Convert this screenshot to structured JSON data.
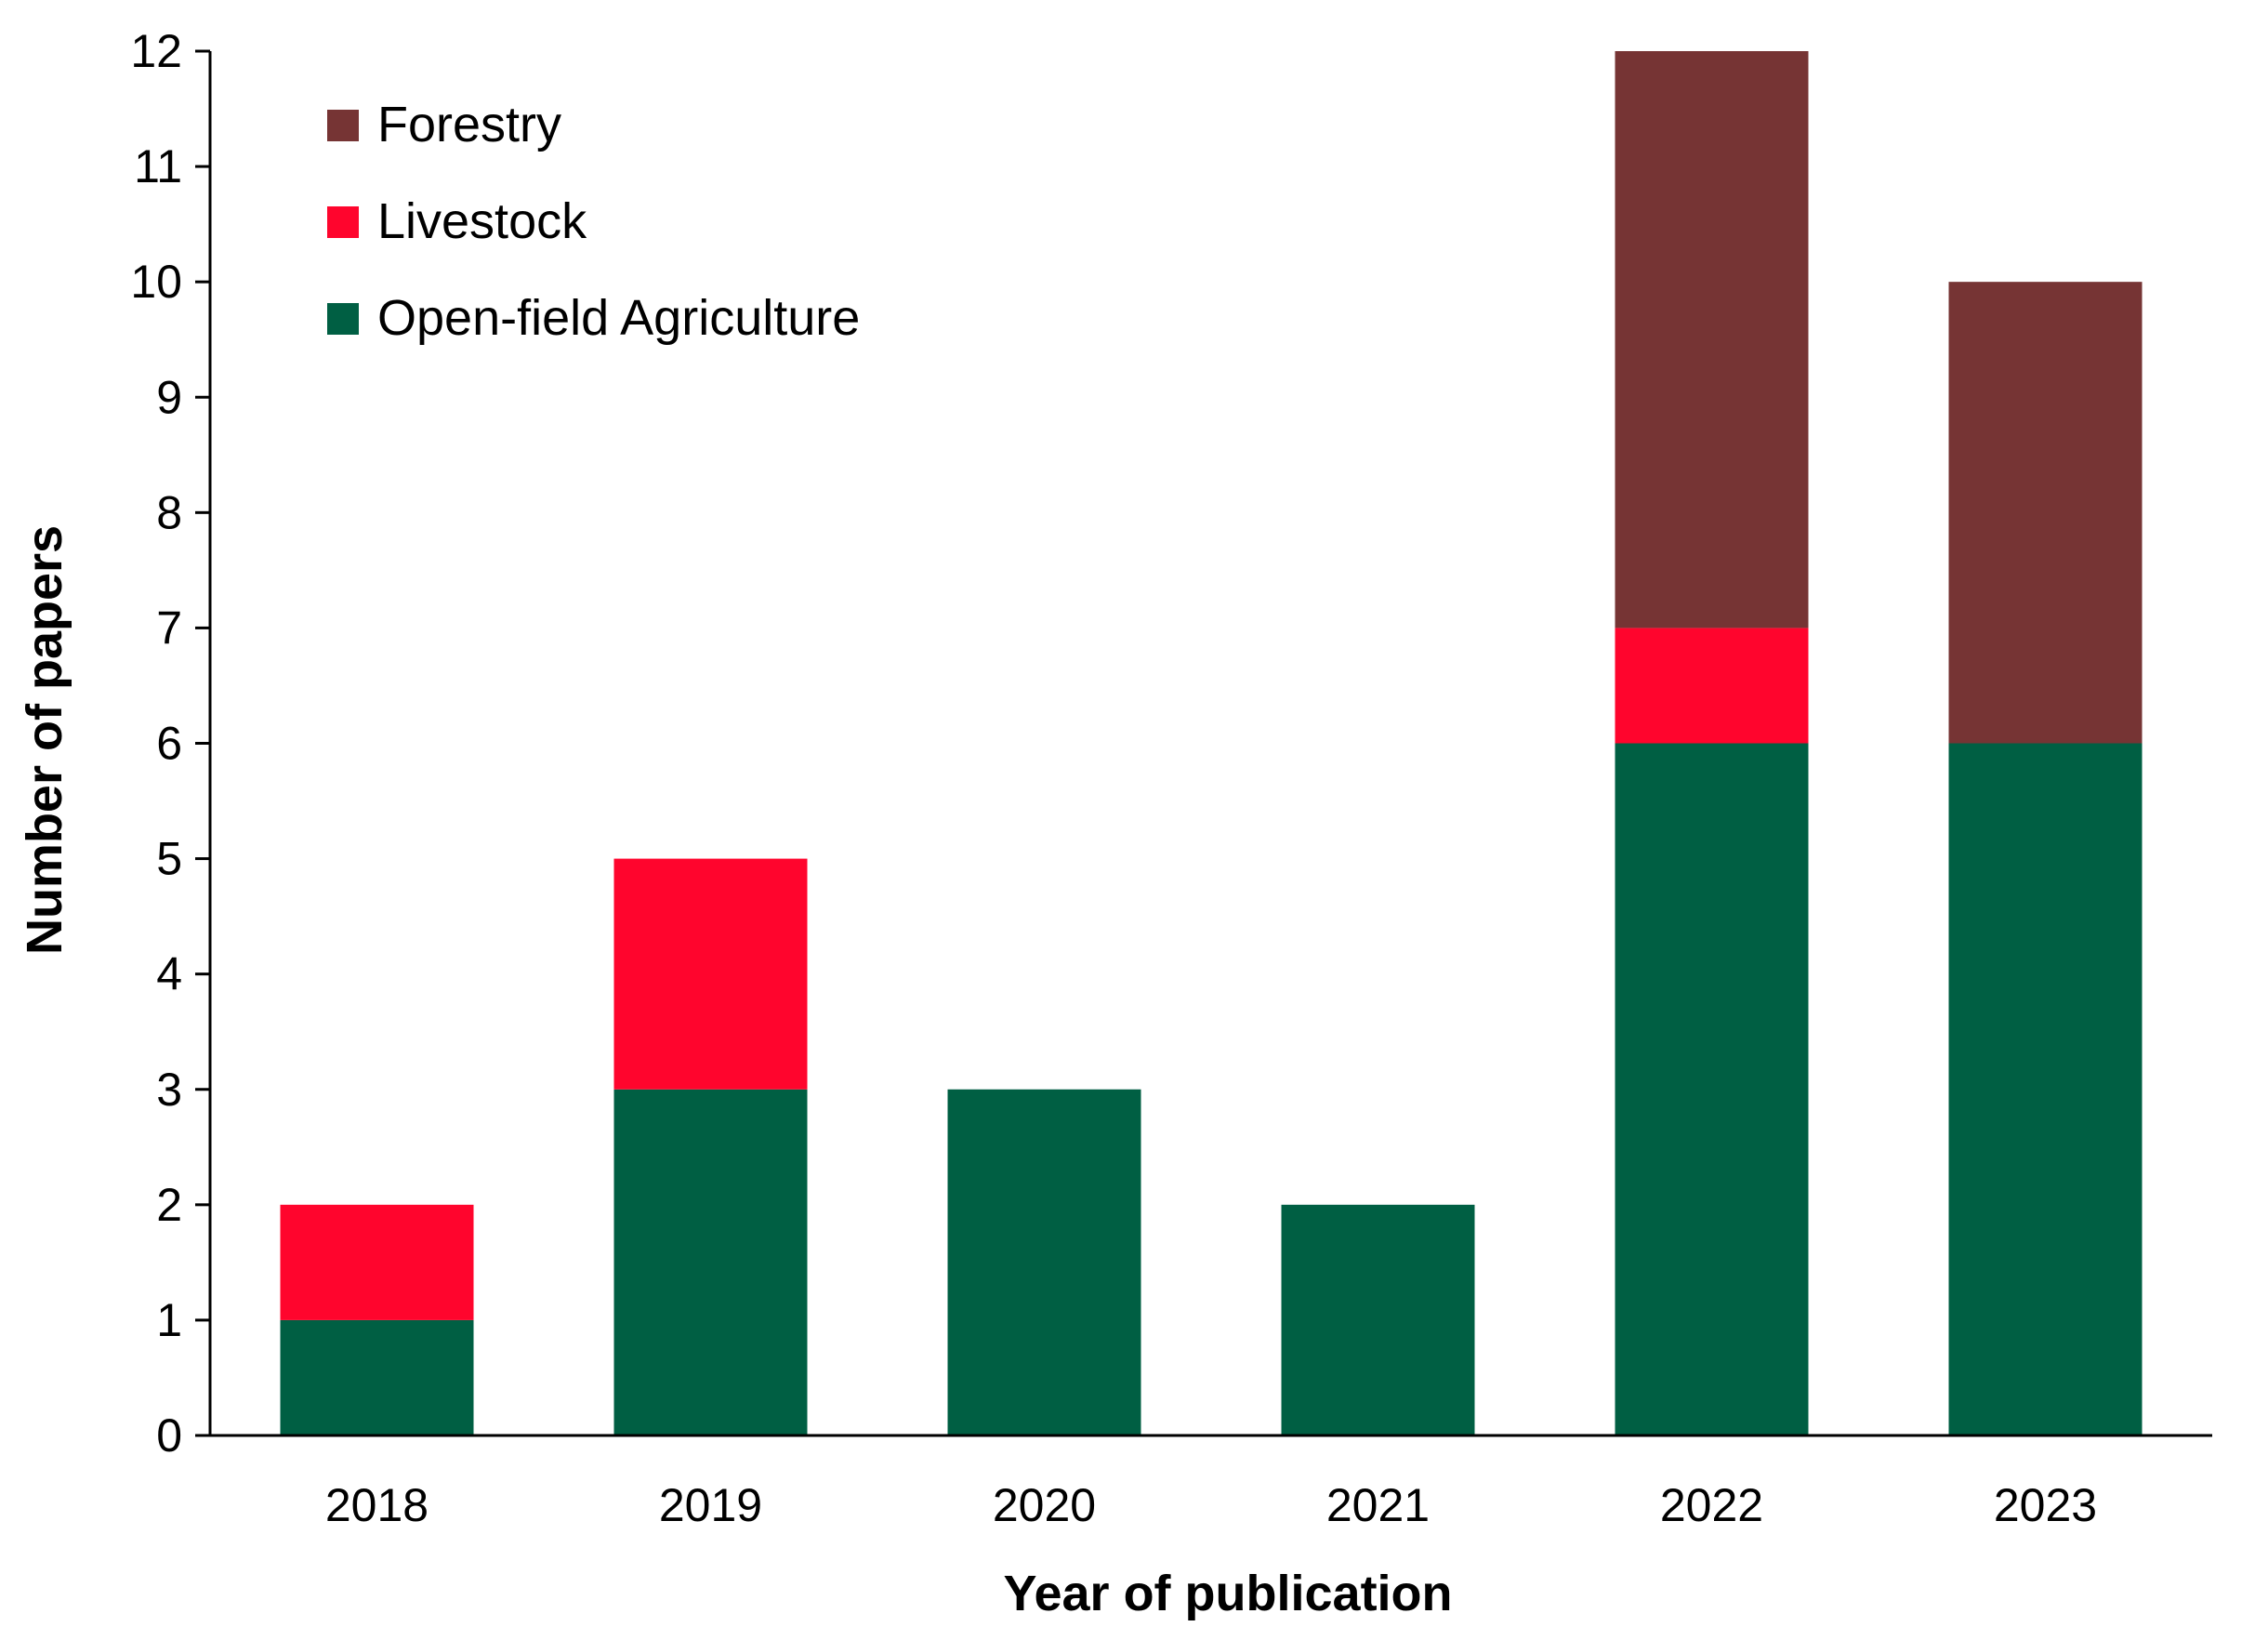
{
  "chart_data": {
    "type": "bar",
    "stacked": true,
    "title": "",
    "xlabel": "Year of publication",
    "ylabel": "Number of papers",
    "categories": [
      "2018",
      "2019",
      "2020",
      "2021",
      "2022",
      "2023"
    ],
    "ylim": [
      0,
      12
    ],
    "yticks": [
      "0",
      "1",
      "2",
      "3",
      "4",
      "5",
      "6",
      "7",
      "8",
      "9",
      "10",
      "11",
      "12"
    ],
    "grid": false,
    "legend_position": "top-left",
    "series": [
      {
        "name": "Open-field Agriculture",
        "color": "#005f43",
        "values": [
          1,
          3,
          3,
          2,
          6,
          6
        ]
      },
      {
        "name": "Livestock",
        "color": "#ff052d",
        "values": [
          1,
          2,
          0,
          0,
          1,
          0
        ]
      },
      {
        "name": "Forestry",
        "color": "#763434",
        "values": [
          0,
          0,
          0,
          0,
          5,
          4
        ]
      }
    ],
    "legend_order": [
      "Forestry",
      "Livestock",
      "Open-field Agriculture"
    ]
  }
}
